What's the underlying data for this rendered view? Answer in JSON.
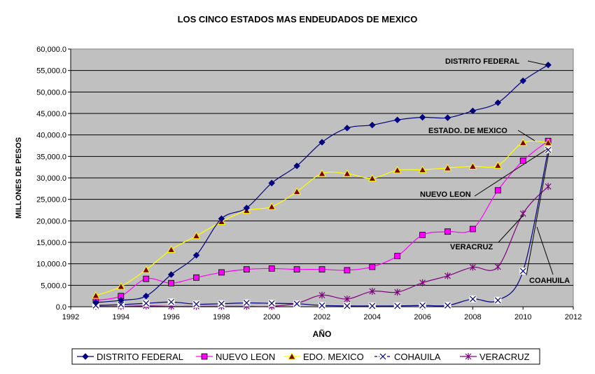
{
  "chart_data": {
    "type": "line",
    "title": "LOS CINCO ESTADOS MAS ENDEUDADOS DE MEXICO",
    "xlabel": "AÑO",
    "ylabel": "MILLONES DE PESOS",
    "xlim": [
      1992,
      2012
    ],
    "ylim": [
      0,
      60000
    ],
    "x_ticks": [
      "1992",
      "1994",
      "1996",
      "1998",
      "2000",
      "2002",
      "2004",
      "2006",
      "2008",
      "2010",
      "2012"
    ],
    "y_ticks": [
      "0.0",
      "5,000.0",
      "10,000.0",
      "15,000.0",
      "20,000.0",
      "25,000.0",
      "30,000.0",
      "35,000.0",
      "40,000.0",
      "45,000.0",
      "50,000.0",
      "55,000.0",
      "60,000.0"
    ],
    "grid": true,
    "plot_background": "#c0c0c0",
    "legend_position": "bottom",
    "x": [
      1993,
      1994,
      1995,
      1996,
      1997,
      1998,
      1999,
      2000,
      2001,
      2002,
      2003,
      2004,
      2005,
      2006,
      2007,
      2008,
      2009,
      2010,
      2011
    ],
    "series": [
      {
        "name": "DISTRITO FEDERAL",
        "color": "#000080",
        "marker": "diamond",
        "values": [
          1000,
          1500,
          2500,
          7500,
          12000,
          20500,
          23000,
          28800,
          32800,
          38300,
          41600,
          42300,
          43500,
          44100,
          44000,
          45600,
          47500,
          52600,
          56300
        ]
      },
      {
        "name": "NUEVO LEON",
        "color": "#ff00ff",
        "marker": "square",
        "values": [
          1500,
          2500,
          6500,
          5500,
          6800,
          8000,
          8700,
          8900,
          8700,
          8700,
          8500,
          9300,
          11800,
          16700,
          17500,
          18100,
          27100,
          34000,
          38600
        ]
      },
      {
        "name": "EDO. MEXICO",
        "color": "#ffff00",
        "marker": "triangle",
        "values": [
          2600,
          4700,
          8600,
          13300,
          16500,
          19800,
          22400,
          23300,
          26800,
          31000,
          31000,
          29900,
          31800,
          31900,
          32300,
          32700,
          32900,
          38200,
          38200
        ]
      },
      {
        "name": "COHAUILA",
        "color": "#000080",
        "marker": "x",
        "values": [
          300,
          500,
          800,
          1100,
          600,
          700,
          900,
          800,
          700,
          300,
          200,
          200,
          200,
          300,
          300,
          1800,
          1500,
          8300,
          36500
        ]
      },
      {
        "name": "VERACRUZ",
        "color": "#800080",
        "marker": "star",
        "values": [
          100,
          100,
          200,
          100,
          100,
          100,
          100,
          100,
          800,
          2700,
          1800,
          3600,
          3400,
          5600,
          7200,
          9200,
          9300,
          21700,
          28000
        ]
      }
    ],
    "annotations": [
      {
        "text": "DISTRITO FEDERAL",
        "x": 2011,
        "y": 56300
      },
      {
        "text": "ESTADO. DE MEXICO",
        "x": 2011,
        "y": 38200
      },
      {
        "text": "NUEVO LEON",
        "x": 2011,
        "y": 38600
      },
      {
        "text": "VERACRUZ",
        "x": 2011,
        "y": 28000
      },
      {
        "text": "COAHUILA",
        "x": 2011,
        "y": 36500
      }
    ]
  }
}
